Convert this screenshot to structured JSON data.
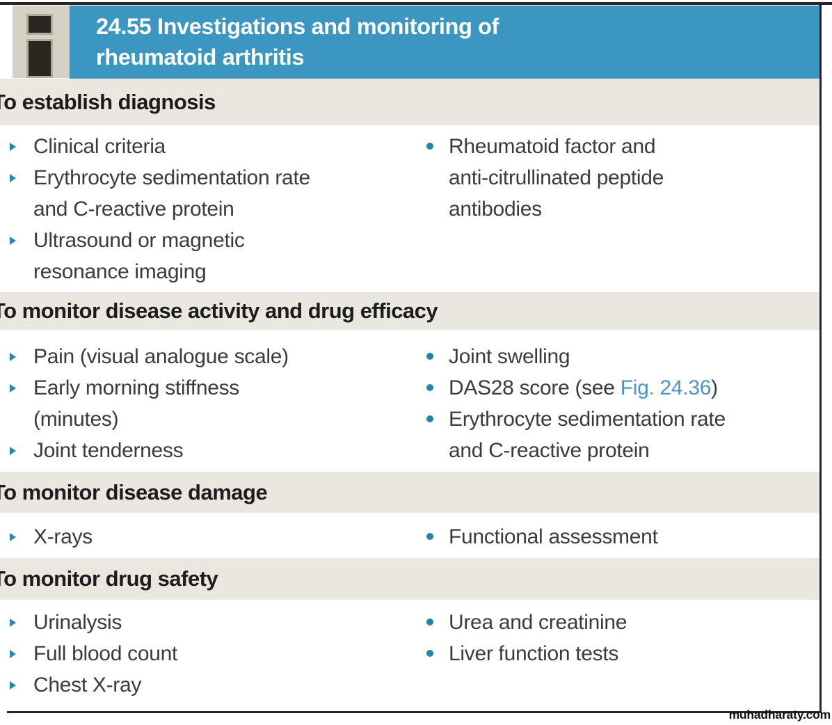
{
  "header": {
    "code": "24.55",
    "title": "  Investigations and monitoring of\nrheumatoid arthritis"
  },
  "colors": {
    "header_blue": "#3b96c2",
    "band_gray": "#eae6e0",
    "icon_box_beige": "#d6d1c5",
    "bullet_blue": "#2d84b1",
    "dot_blue": "#2581ad",
    "link_blue": "#4f93c3",
    "body_text": "#3b3a3e"
  },
  "sections": [
    {
      "heading": "To establish diagnosis",
      "left_items": [
        {
          "text": "Clinical criteria"
        },
        {
          "text": "Erythrocyte sedimentation rate\nand C-reactive protein"
        },
        {
          "text": "Ultrasound or magnetic\nresonance imaging"
        }
      ],
      "right_items": [
        {
          "text": "Rheumatoid factor and\nanti-citrullinated peptide\nantibodies"
        }
      ]
    },
    {
      "heading": "To monitor disease activity and drug efficacy",
      "left_items": [
        {
          "text": "Pain (visual analogue scale)"
        },
        {
          "text": "Early morning stiffness\n(minutes)"
        },
        {
          "text": "Joint tenderness"
        }
      ],
      "right_items": [
        {
          "text": "Joint swelling"
        },
        {
          "prefix": "DAS28 score (see ",
          "link": "Fig. 24.36",
          "suffix": ")"
        },
        {
          "text": "Erythrocyte sedimentation rate\nand C-reactive protein"
        }
      ]
    },
    {
      "heading": "To monitor disease damage",
      "left_items": [
        {
          "text": "X-rays"
        }
      ],
      "right_items": [
        {
          "text": "Functional assessment"
        }
      ]
    },
    {
      "heading": "To monitor drug safety",
      "left_items": [
        {
          "text": "Urinalysis"
        },
        {
          "text": "Full blood count"
        },
        {
          "text": "Chest X-ray"
        }
      ],
      "right_items": [
        {
          "text": "Urea and creatinine"
        },
        {
          "text": "Liver function tests"
        }
      ]
    }
  ],
  "watermark": "muhadharaty.com"
}
